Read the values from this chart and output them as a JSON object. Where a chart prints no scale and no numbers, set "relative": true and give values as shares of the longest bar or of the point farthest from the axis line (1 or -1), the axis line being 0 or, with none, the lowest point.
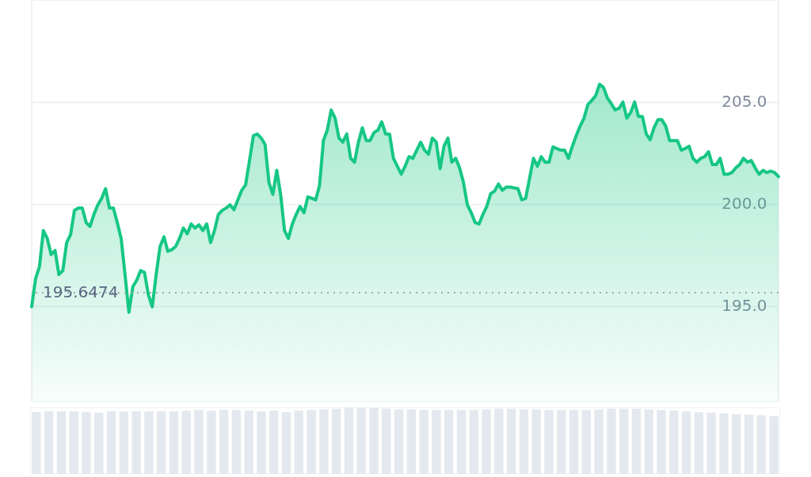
{
  "chart_data": [
    {
      "type": "area",
      "categories": [
        null,
        null,
        null,
        null,
        null,
        null,
        null,
        null,
        null,
        null,
        null,
        null,
        null,
        null,
        null,
        null,
        null,
        null,
        null,
        null,
        null,
        null,
        null,
        null,
        null,
        null,
        null,
        null,
        null,
        null,
        null,
        null,
        null,
        null,
        null,
        null,
        null,
        null,
        null,
        null,
        null,
        null,
        null,
        null,
        null,
        null,
        null,
        null,
        null,
        null,
        null,
        null,
        null,
        null,
        null,
        null,
        null,
        null,
        null,
        null,
        null,
        null,
        null,
        null,
        null,
        null,
        null,
        null,
        null,
        null,
        null,
        null,
        null,
        null,
        null,
        null,
        null,
        null,
        null,
        null,
        null,
        null,
        null,
        null,
        null,
        null,
        null,
        null,
        null,
        null,
        null,
        null,
        null,
        null,
        null,
        null,
        null,
        null,
        null,
        null,
        null,
        null,
        null,
        null,
        null,
        null,
        null,
        null,
        null,
        null,
        null,
        null,
        null,
        null,
        null,
        null,
        null,
        null,
        null,
        null,
        null,
        null,
        null,
        null,
        null,
        null,
        null,
        null,
        null,
        null,
        null,
        null,
        null,
        null,
        null,
        null,
        null,
        null,
        null,
        null,
        null,
        null,
        null,
        null,
        null,
        null,
        null,
        null,
        null,
        null,
        null,
        null,
        null,
        null,
        null,
        null,
        null,
        null,
        null,
        null,
        null,
        null,
        null,
        null,
        null,
        null,
        null,
        null,
        null,
        null,
        null,
        null,
        null,
        null,
        null,
        null,
        null,
        null,
        null,
        null,
        null,
        null,
        null,
        null,
        null,
        null,
        null,
        null,
        null,
        null,
        null,
        null,
        null
      ],
      "series": [
        {
          "color": "#16c784",
          "values": [
            194.96,
            196.34,
            196.93,
            198.7,
            198.31,
            197.52,
            197.72,
            196.54,
            196.73,
            198.11,
            198.5,
            199.69,
            199.8,
            199.8,
            199.09,
            198.9,
            199.49,
            199.96,
            200.28,
            200.75,
            199.8,
            199.8,
            199.09,
            198.31,
            196.54,
            194.69,
            195.94,
            196.26,
            196.73,
            196.65,
            195.55,
            194.96,
            196.54,
            197.91,
            198.39,
            197.68,
            197.76,
            197.91,
            198.31,
            198.82,
            198.54,
            199.02,
            198.82,
            198.98,
            198.7,
            199.02,
            198.11,
            198.7,
            199.49,
            199.69,
            199.8,
            199.96,
            199.72,
            200.2,
            200.67,
            200.94,
            202.13,
            203.35,
            203.43,
            203.23,
            202.91,
            201.06,
            200.47,
            201.65,
            200.47,
            198.7,
            198.31,
            199.02,
            199.49,
            199.88,
            199.57,
            200.35,
            200.28,
            200.2,
            200.91,
            203.11,
            203.62,
            204.61,
            204.21,
            203.23,
            203.03,
            203.43,
            202.24,
            202.05,
            203.03,
            203.74,
            203.11,
            203.11,
            203.5,
            203.62,
            204.02,
            203.43,
            203.43,
            202.24,
            201.85,
            201.46,
            201.85,
            202.32,
            202.24,
            202.64,
            203.03,
            202.64,
            202.44,
            203.23,
            203.03,
            201.73,
            202.83,
            203.23,
            202.05,
            202.24,
            201.77,
            201.06,
            199.96,
            199.57,
            199.09,
            199.02,
            199.49,
            199.88,
            200.51,
            200.63,
            200.98,
            200.67,
            200.83,
            200.83,
            200.79,
            200.75,
            200.2,
            200.28,
            201.26,
            202.24,
            201.85,
            202.32,
            202.05,
            202.05,
            202.8,
            202.72,
            202.64,
            202.64,
            202.24,
            202.83,
            203.35,
            203.82,
            204.21,
            204.88,
            205.08,
            205.31,
            205.87,
            205.71,
            205.2,
            204.92,
            204.61,
            204.69,
            205.0,
            204.21,
            204.49,
            205.0,
            204.29,
            204.29,
            203.43,
            203.15,
            203.74,
            204.13,
            204.13,
            203.82,
            203.11,
            203.11,
            203.11,
            202.64,
            202.72,
            202.83,
            202.24,
            202.05,
            202.24,
            202.32,
            202.56,
            201.93,
            201.93,
            202.24,
            201.46,
            201.46,
            201.54,
            201.77,
            201.93,
            202.24,
            202.05,
            202.13,
            201.77,
            201.46,
            201.65,
            201.54,
            201.61,
            201.54,
            201.34
          ]
        }
      ],
      "ylim": [
        190.3,
        210
      ],
      "yticks": [
        {
          "value": 195,
          "label": "195.0"
        },
        {
          "value": 200,
          "label": "200.0"
        },
        {
          "value": 205,
          "label": "205.0"
        }
      ],
      "grid": "y",
      "tick_labels": "y",
      "ref_lines": [
        {
          "axis": "y",
          "value": 195.6474,
          "label": "195.6474",
          "line_style": "dotted",
          "color": "#a1a7bb"
        }
      ]
    },
    {
      "type": "bar",
      "relative": true,
      "categories": [
        null,
        null,
        null,
        null,
        null,
        null,
        null,
        null,
        null,
        null,
        null,
        null,
        null,
        null,
        null,
        null,
        null,
        null,
        null,
        null,
        null,
        null,
        null,
        null,
        null,
        null,
        null,
        null,
        null,
        null,
        null,
        null,
        null,
        null,
        null,
        null,
        null,
        null,
        null,
        null,
        null,
        null,
        null,
        null,
        null,
        null,
        null,
        null,
        null,
        null,
        null,
        null,
        null,
        null,
        null,
        null,
        null,
        null,
        null,
        null
      ],
      "values": [
        0.93,
        0.94,
        0.94,
        0.94,
        0.93,
        0.92,
        0.94,
        0.94,
        0.94,
        0.94,
        0.94,
        0.94,
        0.95,
        0.96,
        0.95,
        0.96,
        0.96,
        0.95,
        0.94,
        0.95,
        0.93,
        0.95,
        0.96,
        0.97,
        0.98,
        1.0,
        1.0,
        0.99,
        0.98,
        0.97,
        0.97,
        0.96,
        0.96,
        0.96,
        0.96,
        0.96,
        0.97,
        0.98,
        0.98,
        0.97,
        0.97,
        0.96,
        0.96,
        0.96,
        0.96,
        0.97,
        0.98,
        0.98,
        0.98,
        0.97,
        0.96,
        0.95,
        0.94,
        0.93,
        0.92,
        0.91,
        0.9,
        0.89,
        0.88,
        0.87
      ],
      "color": "#e4e8ef",
      "tick_labels": false
    }
  ]
}
